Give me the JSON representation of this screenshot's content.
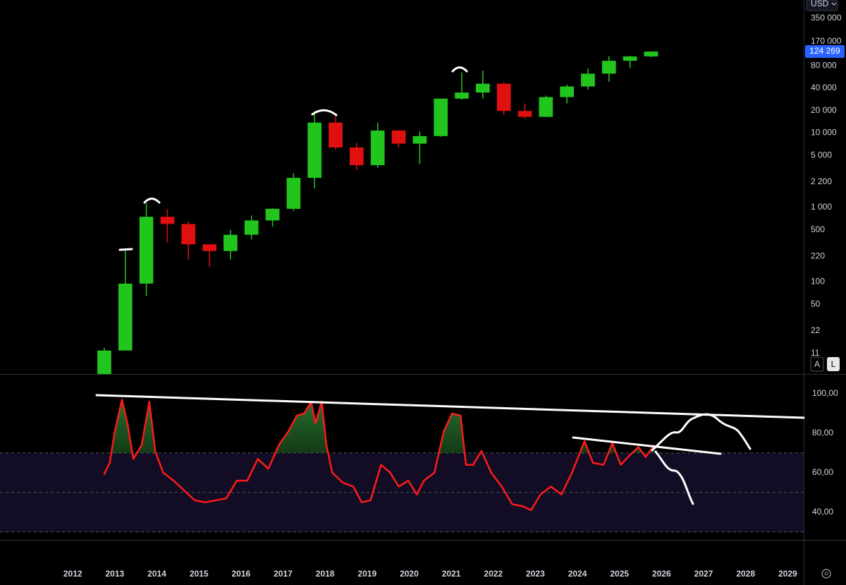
{
  "chart_data": [
    {
      "type": "candlestick",
      "x": [
        2012.75,
        2013.25,
        2013.75,
        2014.25,
        2014.75,
        2015.25,
        2015.75,
        2016.25,
        2016.75,
        2017.25,
        2017.75,
        2018.25,
        2018.75,
        2019.25,
        2019.75,
        2020.25,
        2020.75,
        2021.25,
        2021.75,
        2022.25,
        2022.75,
        2023.25,
        2023.75,
        2024.25,
        2024.75,
        2025.25,
        2025.75
      ],
      "open": [
        5,
        12,
        95,
        750,
        600,
        320,
        260,
        430,
        670,
        960,
        2500,
        13800,
        6400,
        3700,
        10800,
        7200,
        9100,
        29000,
        35000,
        46000,
        19800,
        16500,
        30400,
        42200,
        62700,
        93400,
        107000
      ],
      "high": [
        13,
        266,
        1150,
        950,
        650,
        320,
        500,
        780,
        980,
        2900,
        19700,
        17000,
        7400,
        13800,
        10900,
        10500,
        29000,
        65000,
        69000,
        48000,
        25000,
        31800,
        44700,
        73800,
        108000,
        109000,
        124500
      ],
      "low": [
        4.5,
        12,
        65,
        340,
        200,
        160,
        200,
        370,
        550,
        900,
        1800,
        6000,
        3200,
        3400,
        6400,
        3800,
        8900,
        28000,
        29000,
        17600,
        15500,
        16300,
        24900,
        38500,
        49000,
        74400,
        105000
      ],
      "close": [
        12,
        95,
        750,
        600,
        320,
        260,
        430,
        670,
        960,
        2500,
        13800,
        6400,
        3700,
        10800,
        7200,
        9100,
        29000,
        35000,
        46000,
        19800,
        16500,
        30400,
        42200,
        62700,
        93400,
        107000,
        124269
      ],
      "up_color": "#22c41e",
      "down_color": "#e01010",
      "log_scale": true,
      "xlim": [
        2010.27,
        2029.38
      ],
      "ylim": [
        5.8,
        612000
      ],
      "yticks": [
        {
          "value": 350000,
          "label": "350 000"
        },
        {
          "value": 170000,
          "label": "170 000"
        },
        {
          "value": 80000,
          "label": "80 000"
        },
        {
          "value": 40000,
          "label": "40 000"
        },
        {
          "value": 20000,
          "label": "20 000"
        },
        {
          "value": 10000,
          "label": "10 000"
        },
        {
          "value": 5000,
          "label": "5 000"
        },
        {
          "value": 2200,
          "label": "2 200"
        },
        {
          "value": 1000,
          "label": "1 000"
        },
        500,
        220,
        100,
        50,
        22,
        11
      ],
      "last_price": 124269,
      "last_price_label": "124 269",
      "last_price_color": "#2962ff"
    },
    {
      "type": "line",
      "x": [
        2012.74,
        2012.88,
        2013.0,
        2013.17,
        2013.3,
        2013.44,
        2013.64,
        2013.82,
        2013.96,
        2014.15,
        2014.4,
        2014.65,
        2014.9,
        2015.15,
        2015.4,
        2015.65,
        2015.9,
        2016.15,
        2016.4,
        2016.65,
        2016.9,
        2017.13,
        2017.33,
        2017.5,
        2017.67,
        2017.77,
        2017.92,
        2018.03,
        2018.17,
        2018.42,
        2018.67,
        2018.87,
        2019.08,
        2019.33,
        2019.55,
        2019.75,
        2019.98,
        2020.18,
        2020.35,
        2020.6,
        2020.82,
        2021.02,
        2021.22,
        2021.35,
        2021.52,
        2021.72,
        2021.95,
        2022.2,
        2022.45,
        2022.7,
        2022.9,
        2023.12,
        2023.37,
        2023.62,
        2023.87,
        2024.17,
        2024.37,
        2024.62,
        2024.83,
        2025.03,
        2025.25,
        2025.45,
        2025.62,
        2025.83
      ],
      "series": [
        {
          "color": "#ff1a1a",
          "values": [
            59,
            65,
            81,
            97,
            85,
            67,
            74,
            96,
            71,
            60,
            56,
            51,
            46,
            45,
            46,
            47,
            56,
            56,
            67,
            62,
            74,
            81,
            89,
            90,
            96,
            85,
            96,
            74,
            60,
            55,
            53,
            45,
            46,
            64,
            60,
            53,
            56,
            49,
            56,
            60,
            81,
            90,
            89,
            64,
            64,
            71,
            60,
            53,
            44,
            43,
            41,
            49,
            53,
            49,
            60,
            76,
            65,
            64,
            75,
            64,
            69,
            73,
            68,
            74
          ]
        }
      ],
      "xlim": [
        2010.27,
        2029.38
      ],
      "xticks": [
        2012,
        2013,
        2014,
        2015,
        2016,
        2017,
        2018,
        2019,
        2020,
        2021,
        2022,
        2023,
        2024,
        2025,
        2026,
        2027,
        2028,
        2029
      ],
      "ylim": [
        26,
        110
      ],
      "yticks": [
        {
          "value": 100,
          "label": "100,00"
        },
        {
          "value": 80,
          "label": "80,00"
        },
        {
          "value": 60,
          "label": "60,00"
        },
        {
          "value": 40,
          "label": "40,00"
        }
      ],
      "levels": [
        70,
        50,
        30
      ]
    }
  ],
  "ui": {
    "currency": "USD",
    "scale_buttons": [
      "A",
      "L"
    ]
  }
}
